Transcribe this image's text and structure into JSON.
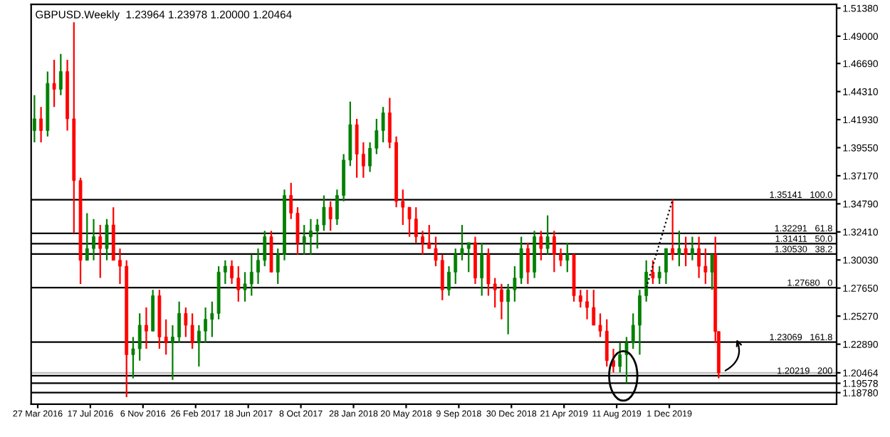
{
  "chart_data": {
    "type": "candlestick",
    "title": "GBPUSD.Weekly  1.23964 1.23978 1.20000 1.20464",
    "x": [
      "2016-03-20",
      "2016-04-03",
      "2016-04-17",
      "2016-05-01",
      "2016-05-15",
      "2016-05-29",
      "2016-06-12",
      "2016-06-26",
      "2016-07-10",
      "2016-07-24",
      "2016-08-07",
      "2016-08-21",
      "2016-09-04",
      "2016-09-18",
      "2016-10-02",
      "2016-10-16",
      "2016-10-30",
      "2016-11-13",
      "2016-11-27",
      "2016-12-11",
      "2016-12-25",
      "2017-01-08",
      "2017-01-22",
      "2017-02-05",
      "2017-02-19",
      "2017-03-05",
      "2017-03-19",
      "2017-04-02",
      "2017-04-16",
      "2017-04-30",
      "2017-05-14",
      "2017-05-28",
      "2017-06-11",
      "2017-06-25",
      "2017-07-09",
      "2017-07-23",
      "2017-08-06",
      "2017-08-20",
      "2017-09-03",
      "2017-09-17",
      "2017-10-01",
      "2017-10-15",
      "2017-10-29",
      "2017-11-12",
      "2017-11-26",
      "2017-12-10",
      "2017-12-24",
      "2018-01-07",
      "2018-01-21",
      "2018-02-04",
      "2018-02-18",
      "2018-03-04",
      "2018-03-18",
      "2018-04-01",
      "2018-04-15",
      "2018-04-29",
      "2018-05-13",
      "2018-05-27",
      "2018-06-10",
      "2018-06-24",
      "2018-07-08",
      "2018-07-22",
      "2018-08-05",
      "2018-08-19",
      "2018-09-02",
      "2018-09-16",
      "2018-09-30",
      "2018-10-14",
      "2018-10-28",
      "2018-11-11",
      "2018-11-25",
      "2018-12-09",
      "2018-12-23",
      "2019-01-06",
      "2019-01-20",
      "2019-02-03",
      "2019-02-17",
      "2019-03-03",
      "2019-03-17",
      "2019-03-31",
      "2019-04-14",
      "2019-04-28",
      "2019-05-12",
      "2019-05-26",
      "2019-06-09",
      "2019-06-23",
      "2019-07-07",
      "2019-07-21",
      "2019-08-04",
      "2019-08-18",
      "2019-09-01",
      "2019-09-15",
      "2019-09-29",
      "2019-10-13",
      "2019-10-27",
      "2019-11-10",
      "2019-11-24",
      "2019-12-08",
      "2019-12-22",
      "2020-01-05",
      "2020-01-19",
      "2020-02-02",
      "2020-02-16",
      "2020-03-01",
      "2020-03-08",
      "2020-03-15"
    ],
    "ohlc": [
      [
        1.41,
        1.44,
        1.4,
        1.42
      ],
      [
        1.42,
        1.43,
        1.4,
        1.41
      ],
      [
        1.41,
        1.46,
        1.405,
        1.45
      ],
      [
        1.45,
        1.47,
        1.43,
        1.445
      ],
      [
        1.445,
        1.475,
        1.44,
        1.46
      ],
      [
        1.46,
        1.47,
        1.41,
        1.42
      ],
      [
        1.42,
        1.5018,
        1.3229,
        1.3676
      ],
      [
        1.3676,
        1.37,
        1.28,
        1.3
      ],
      [
        1.3,
        1.34,
        1.3,
        1.31
      ],
      [
        1.31,
        1.335,
        1.3,
        1.32
      ],
      [
        1.32,
        1.33,
        1.285,
        1.31
      ],
      [
        1.31,
        1.335,
        1.3,
        1.33
      ],
      [
        1.33,
        1.345,
        1.3,
        1.3
      ],
      [
        1.3,
        1.31,
        1.28,
        1.295
      ],
      [
        1.295,
        1.3,
        1.184,
        1.22
      ],
      [
        1.22,
        1.235,
        1.2,
        1.225
      ],
      [
        1.225,
        1.255,
        1.215,
        1.245
      ],
      [
        1.245,
        1.26,
        1.225,
        1.24
      ],
      [
        1.24,
        1.275,
        1.24,
        1.27
      ],
      [
        1.27,
        1.275,
        1.225,
        1.235
      ],
      [
        1.235,
        1.25,
        1.22,
        1.23
      ],
      [
        1.23,
        1.245,
        1.1987,
        1.235
      ],
      [
        1.235,
        1.265,
        1.23,
        1.255
      ],
      [
        1.255,
        1.26,
        1.235,
        1.245
      ],
      [
        1.245,
        1.255,
        1.225,
        1.23
      ],
      [
        1.23,
        1.245,
        1.21,
        1.24
      ],
      [
        1.24,
        1.26,
        1.23,
        1.25
      ],
      [
        1.25,
        1.265,
        1.235,
        1.255
      ],
      [
        1.255,
        1.295,
        1.25,
        1.29
      ],
      [
        1.29,
        1.3,
        1.28,
        1.295
      ],
      [
        1.295,
        1.3,
        1.28,
        1.285
      ],
      [
        1.285,
        1.295,
        1.265,
        1.275
      ],
      [
        1.275,
        1.29,
        1.265,
        1.28
      ],
      [
        1.28,
        1.305,
        1.27,
        1.29
      ],
      [
        1.29,
        1.31,
        1.28,
        1.3
      ],
      [
        1.3,
        1.325,
        1.295,
        1.32
      ],
      [
        1.32,
        1.325,
        1.29,
        1.29
      ],
      [
        1.29,
        1.31,
        1.28,
        1.305
      ],
      [
        1.305,
        1.36,
        1.3,
        1.355
      ],
      [
        1.355,
        1.3657,
        1.335,
        1.34
      ],
      [
        1.34,
        1.345,
        1.305,
        1.315
      ],
      [
        1.315,
        1.33,
        1.305,
        1.32
      ],
      [
        1.32,
        1.335,
        1.305,
        1.325
      ],
      [
        1.325,
        1.335,
        1.31,
        1.33
      ],
      [
        1.33,
        1.355,
        1.325,
        1.345
      ],
      [
        1.345,
        1.35,
        1.325,
        1.335
      ],
      [
        1.335,
        1.36,
        1.33,
        1.355
      ],
      [
        1.355,
        1.39,
        1.35,
        1.385
      ],
      [
        1.385,
        1.4345,
        1.38,
        1.415
      ],
      [
        1.415,
        1.42,
        1.37,
        1.39
      ],
      [
        1.39,
        1.4,
        1.37,
        1.38
      ],
      [
        1.38,
        1.4,
        1.375,
        1.395
      ],
      [
        1.395,
        1.42,
        1.39,
        1.41
      ],
      [
        1.41,
        1.43,
        1.4,
        1.425
      ],
      [
        1.425,
        1.4377,
        1.395,
        1.4
      ],
      [
        1.4,
        1.405,
        1.345,
        1.35
      ],
      [
        1.35,
        1.36,
        1.33,
        1.345
      ],
      [
        1.345,
        1.345,
        1.32,
        1.335
      ],
      [
        1.335,
        1.345,
        1.315,
        1.32
      ],
      [
        1.32,
        1.325,
        1.305,
        1.315
      ],
      [
        1.315,
        1.33,
        1.31,
        1.31
      ],
      [
        1.31,
        1.32,
        1.295,
        1.3
      ],
      [
        1.3,
        1.305,
        1.2662,
        1.275
      ],
      [
        1.275,
        1.295,
        1.27,
        1.29
      ],
      [
        1.29,
        1.31,
        1.28,
        1.305
      ],
      [
        1.305,
        1.33,
        1.3,
        1.31
      ],
      [
        1.31,
        1.315,
        1.29,
        1.315
      ],
      [
        1.315,
        1.32,
        1.28,
        1.285
      ],
      [
        1.285,
        1.315,
        1.27,
        1.305
      ],
      [
        1.305,
        1.31,
        1.27,
        1.28
      ],
      [
        1.28,
        1.285,
        1.26,
        1.275
      ],
      [
        1.275,
        1.28,
        1.25,
        1.265
      ],
      [
        1.265,
        1.28,
        1.2373,
        1.275
      ],
      [
        1.275,
        1.295,
        1.265,
        1.285
      ],
      [
        1.285,
        1.32,
        1.28,
        1.31
      ],
      [
        1.31,
        1.315,
        1.28,
        1.29
      ],
      [
        1.29,
        1.325,
        1.285,
        1.32
      ],
      [
        1.32,
        1.325,
        1.3,
        1.31
      ],
      [
        1.31,
        1.3381,
        1.305,
        1.32
      ],
      [
        1.32,
        1.325,
        1.29,
        1.305
      ],
      [
        1.305,
        1.31,
        1.295,
        1.3
      ],
      [
        1.3,
        1.315,
        1.29,
        1.305
      ],
      [
        1.305,
        1.305,
        1.265,
        1.27
      ],
      [
        1.27,
        1.275,
        1.26,
        1.265
      ],
      [
        1.265,
        1.275,
        1.25,
        1.26
      ],
      [
        1.26,
        1.275,
        1.245,
        1.245
      ],
      [
        1.245,
        1.255,
        1.235,
        1.24
      ],
      [
        1.24,
        1.25,
        1.21,
        1.215
      ],
      [
        1.215,
        1.225,
        1.205,
        1.21
      ],
      [
        1.21,
        1.23,
        1.205,
        1.22
      ],
      [
        1.22,
        1.235,
        1.1959,
        1.23
      ],
      [
        1.23,
        1.255,
        1.225,
        1.245
      ],
      [
        1.245,
        1.275,
        1.22,
        1.27
      ],
      [
        1.27,
        1.3,
        1.265,
        1.29
      ],
      [
        1.29,
        1.3,
        1.28,
        1.285
      ],
      [
        1.285,
        1.295,
        1.28,
        1.29
      ],
      [
        1.29,
        1.31,
        1.28,
        1.31
      ],
      [
        1.31,
        1.3514,
        1.3,
        1.305
      ],
      [
        1.305,
        1.325,
        1.295,
        1.31
      ],
      [
        1.31,
        1.32,
        1.295,
        1.305
      ],
      [
        1.305,
        1.32,
        1.3,
        1.31
      ],
      [
        1.31,
        1.32,
        1.285,
        1.295
      ],
      [
        1.295,
        1.31,
        1.28,
        1.29
      ],
      [
        1.29,
        1.305,
        1.275,
        1.305
      ],
      [
        1.305,
        1.32,
        1.23,
        1.23964
      ],
      [
        1.23964,
        1.23978,
        1.2,
        1.20464
      ]
    ],
    "colors": [
      "#008000",
      "#ff0000",
      "#008000",
      "#ff0000",
      "#008000",
      "#ff0000",
      "#ff0000",
      "#ff0000",
      "#008000",
      "#008000",
      "#ff0000",
      "#008000",
      "#ff0000",
      "#ff0000",
      "#ff0000",
      "#008000",
      "#008000",
      "#ff0000",
      "#008000",
      "#ff0000",
      "#ff0000",
      "#008000",
      "#008000",
      "#ff0000",
      "#ff0000",
      "#008000",
      "#008000",
      "#008000",
      "#008000",
      "#008000",
      "#ff0000",
      "#ff0000",
      "#008000",
      "#008000",
      "#008000",
      "#008000",
      "#ff0000",
      "#008000",
      "#008000",
      "#ff0000",
      "#ff0000",
      "#008000",
      "#008000",
      "#008000",
      "#008000",
      "#ff0000",
      "#008000",
      "#008000",
      "#008000",
      "#ff0000",
      "#ff0000",
      "#008000",
      "#008000",
      "#008000",
      "#ff0000",
      "#ff0000",
      "#ff0000",
      "#ff0000",
      "#ff0000",
      "#ff0000",
      "#ff0000",
      "#ff0000",
      "#ff0000",
      "#008000",
      "#008000",
      "#008000",
      "#008000",
      "#ff0000",
      "#008000",
      "#ff0000",
      "#ff0000",
      "#ff0000",
      "#008000",
      "#008000",
      "#008000",
      "#ff0000",
      "#008000",
      "#ff0000",
      "#008000",
      "#ff0000",
      "#ff0000",
      "#008000",
      "#ff0000",
      "#ff0000",
      "#ff0000",
      "#ff0000",
      "#ff0000",
      "#ff0000",
      "#ff0000",
      "#008000",
      "#008000",
      "#008000",
      "#008000",
      "#008000",
      "#ff0000",
      "#008000",
      "#008000",
      "#ff0000",
      "#008000",
      "#ff0000",
      "#008000",
      "#ff0000",
      "#ff0000",
      "#008000",
      "#ff0000",
      "#ff0000"
    ],
    "xlim": [
      "2016-03-13",
      "2020-11-21"
    ],
    "xticks": [
      {
        "value": "2016-03-27",
        "label": "27 Mar 2016"
      },
      {
        "value": "2016-07-17",
        "label": "17 Jul 2016"
      },
      {
        "value": "2016-11-06",
        "label": "6 Nov 2016"
      },
      {
        "value": "2017-02-26",
        "label": "26 Feb 2017"
      },
      {
        "value": "2017-06-18",
        "label": "18 Jun 2017"
      },
      {
        "value": "2017-10-08",
        "label": "8 Oct 2017"
      },
      {
        "value": "2018-01-28",
        "label": "28 Jan 2018"
      },
      {
        "value": "2018-05-20",
        "label": "20 May 2018"
      },
      {
        "value": "2018-09-09",
        "label": "9 Sep 2018"
      },
      {
        "value": "2018-12-30",
        "label": "30 Dec 2018"
      },
      {
        "value": "2019-04-21",
        "label": "21 Apr 2019"
      },
      {
        "value": "2019-08-11",
        "label": "11 Aug 2019"
      },
      {
        "value": "2019-12-01",
        "label": "1 Dec 2019"
      }
    ],
    "ylim": [
      1.178,
      1.517
    ],
    "yticks": [
      {
        "value": 1.5138,
        "label": "1.51380"
      },
      {
        "value": 1.49,
        "label": "1.49000"
      },
      {
        "value": 1.4669,
        "label": "1.46690"
      },
      {
        "value": 1.4431,
        "label": "1.44310"
      },
      {
        "value": 1.4193,
        "label": "1.41930"
      },
      {
        "value": 1.3955,
        "label": "1.39550"
      },
      {
        "value": 1.3717,
        "label": "1.37170"
      },
      {
        "value": 1.3479,
        "label": "1.34790"
      },
      {
        "value": 1.3241,
        "label": "1.32410"
      },
      {
        "value": 1.3003,
        "label": "1.30030"
      },
      {
        "value": 1.2765,
        "label": "1.27650"
      },
      {
        "value": 1.2527,
        "label": "1.25270"
      },
      {
        "value": 1.2289,
        "label": "1.22890"
      },
      {
        "value": 1.20464,
        "label": "1.20464"
      },
      {
        "value": 1.19578,
        "label": "1.19578"
      },
      {
        "value": 1.1878,
        "label": "1.18780"
      }
    ],
    "ref_lines": [
      {
        "axis": "y",
        "value": 1.35141,
        "label": "1.35141   100.0",
        "color": "#000000"
      },
      {
        "axis": "y",
        "value": 1.32291,
        "label": "1.32291   61.8",
        "color": "#000000"
      },
      {
        "axis": "y",
        "value": 1.31411,
        "label": "1.31411   50.0",
        "color": "#000000"
      },
      {
        "axis": "y",
        "value": 1.3053,
        "label": "1.30530   38.2",
        "color": "#000000"
      },
      {
        "axis": "y",
        "value": 1.2768,
        "label": "1.27680   0",
        "color": "#000000"
      },
      {
        "axis": "y",
        "value": 1.23069,
        "label": "1.23069   161.8",
        "color": "#000000"
      },
      {
        "axis": "y",
        "value": 1.20219,
        "label": "1.20219   200",
        "color": "#000000"
      },
      {
        "axis": "y",
        "value": 1.20464,
        "label": null,
        "color": "#c0c0c0"
      },
      {
        "axis": "y",
        "value": 1.19578,
        "label": null,
        "color": "#000000"
      },
      {
        "axis": "y",
        "value": 1.1878,
        "label": null,
        "color": "#000000"
      }
    ],
    "series": [
      {
        "type": "line",
        "x": [
          "2019-10-13",
          "2019-12-08"
        ],
        "values": [
          1.2768,
          1.3514
        ],
        "line_style": "dotted",
        "color": "#000000"
      }
    ],
    "grid": false
  }
}
